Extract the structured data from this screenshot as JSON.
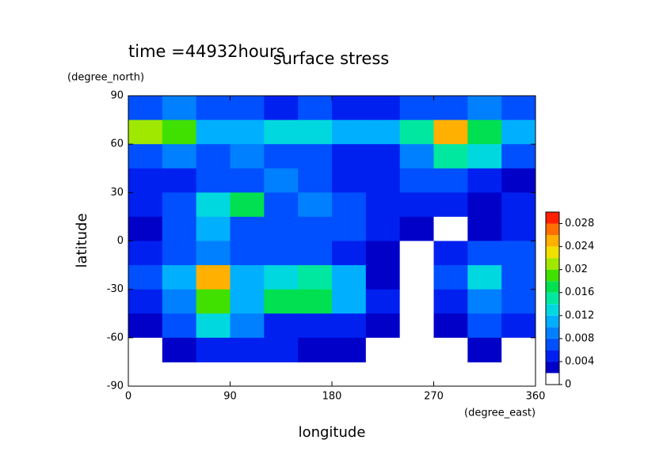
{
  "chart_data": {
    "type": "contour",
    "title": "surface stress",
    "subtitle": "time =44932hours",
    "xlabel": "longitude",
    "ylabel": "latitude",
    "xunit": "(degree_east)",
    "yunit": "(degree_north)",
    "xlim": [
      0,
      360
    ],
    "ylim": [
      -90,
      90
    ],
    "xticks": [
      0,
      90,
      180,
      270,
      360
    ],
    "yticks": [
      -90,
      -60,
      -30,
      0,
      30,
      60,
      90
    ],
    "x": [
      15,
      45,
      75,
      105,
      135,
      165,
      195,
      225,
      255,
      285,
      315,
      345
    ],
    "y": [
      82.5,
      67.5,
      52.5,
      37.5,
      22.5,
      7.5,
      -7.5,
      -22.5,
      -37.5,
      -52.5,
      -67.5
    ],
    "z": [
      [
        0.006,
        0.008,
        0.006,
        0.006,
        0.005,
        0.006,
        0.005,
        0.004,
        0.006,
        0.006,
        0.008,
        0.006
      ],
      [
        0.02,
        0.018,
        0.01,
        0.01,
        0.012,
        0.012,
        0.01,
        0.01,
        0.014,
        0.024,
        0.016,
        0.01
      ],
      [
        0.006,
        0.008,
        0.006,
        0.008,
        0.006,
        0.006,
        0.004,
        0.004,
        0.008,
        0.014,
        0.012,
        0.006
      ],
      [
        0.004,
        0.004,
        0.006,
        0.006,
        0.008,
        0.006,
        0.004,
        0.004,
        0.006,
        0.006,
        0.004,
        0.002
      ],
      [
        0.004,
        0.006,
        0.012,
        0.016,
        0.006,
        0.008,
        0.006,
        0.004,
        0.004,
        0.004,
        0.002,
        0.004
      ],
      [
        0.002,
        0.006,
        0.01,
        0.006,
        0.006,
        0.006,
        0.006,
        0.004,
        0.002,
        0,
        0.002,
        0.004
      ],
      [
        0.004,
        0.006,
        0.008,
        0.006,
        0.006,
        0.006,
        0.004,
        0.002,
        0,
        0.004,
        0.006,
        0.006
      ],
      [
        0.006,
        0.01,
        0.024,
        0.01,
        0.012,
        0.014,
        0.01,
        0.002,
        0,
        0.006,
        0.012,
        0.006
      ],
      [
        0.004,
        0.008,
        0.018,
        0.01,
        0.016,
        0.016,
        0.01,
        0.004,
        0,
        0.004,
        0.008,
        0.006
      ],
      [
        0.002,
        0.006,
        0.012,
        0.008,
        0.004,
        0.004,
        0.004,
        0.002,
        0,
        0.002,
        0.006,
        0.004
      ],
      [
        0,
        0.002,
        0.004,
        0.004,
        0.004,
        0.002,
        0.002,
        0,
        0,
        0,
        0.002,
        0
      ]
    ],
    "levels": [
      0,
      0.002,
      0.004,
      0.006,
      0.008,
      0.01,
      0.012,
      0.014,
      0.016,
      0.018,
      0.02,
      0.022,
      0.024,
      0.026,
      0.028,
      0.03
    ],
    "colors": [
      "#ffffff",
      "#0000c8",
      "#0020f0",
      "#0050ff",
      "#0080ff",
      "#00b0ff",
      "#00d8e0",
      "#00e8a0",
      "#00e050",
      "#40e000",
      "#a0e800",
      "#f0e000",
      "#ffb000",
      "#ff7000",
      "#ff2000"
    ],
    "colorbar_ticks": [
      0,
      0.004,
      0.008,
      0.012,
      0.016,
      0.02,
      0.024,
      0.028
    ]
  }
}
